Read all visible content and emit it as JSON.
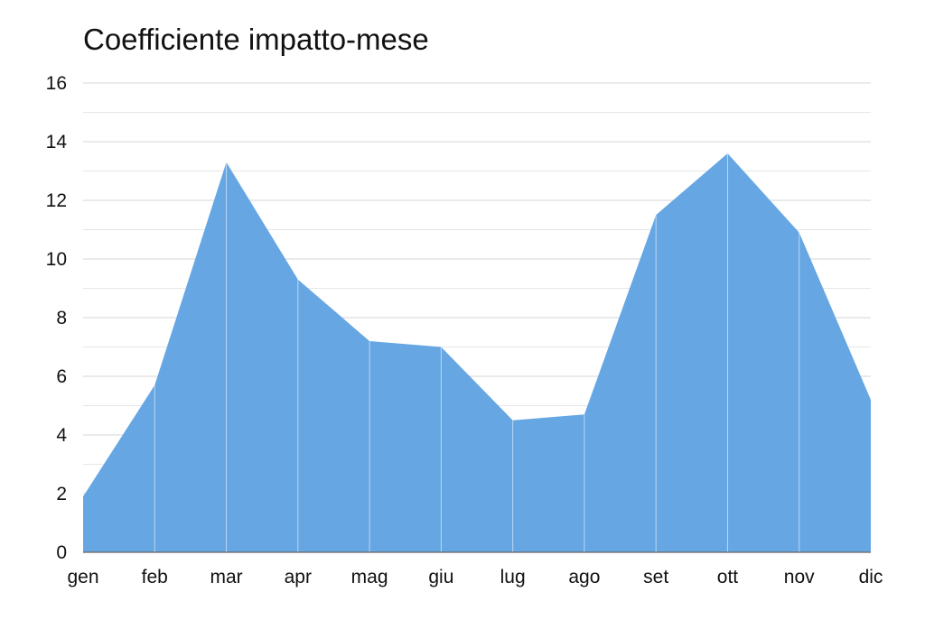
{
  "chart_data": {
    "type": "area",
    "title": "Coefficiente impatto-mese",
    "xlabel": "",
    "ylabel": "",
    "categories": [
      "gen",
      "feb",
      "mar",
      "apr",
      "mag",
      "giu",
      "lug",
      "ago",
      "set",
      "ott",
      "nov",
      "dic"
    ],
    "series": [
      {
        "values": [
          1.9,
          5.7,
          13.3,
          9.3,
          7.2,
          7.0,
          4.5,
          4.7,
          11.5,
          13.6,
          10.9,
          5.2
        ],
        "color": "#66a7e3"
      }
    ],
    "ylim": [
      0,
      16
    ],
    "yticks": [
      "0",
      "2",
      "4",
      "6",
      "8",
      "10",
      "12",
      "14",
      "16"
    ],
    "minor_step": 1,
    "grid": true,
    "legend": "none"
  }
}
